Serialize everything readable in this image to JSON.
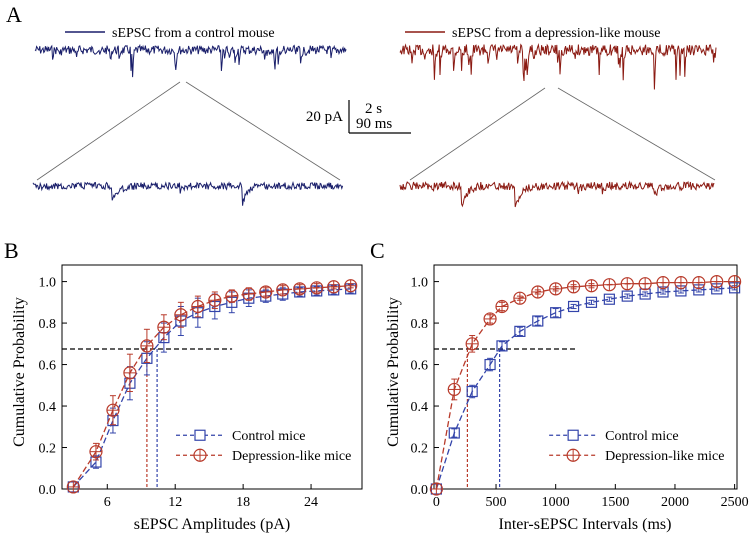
{
  "panel_labels": {
    "a": "A",
    "b": "B",
    "c": "C"
  },
  "colors": {
    "control": "#3344aa",
    "depression": "#b83a2a",
    "control_trace": "#1a1f6b",
    "depression_trace": "#8b1a12",
    "axis": "#000000",
    "threshold": "#000000"
  },
  "panel_a": {
    "legend_control": "sEPSC from a control mouse",
    "legend_depression": "sEPSC from a depression-like mouse",
    "scale_amplitude": "20 pA",
    "scale_time_long": "2 s",
    "scale_time_short": "90 ms"
  },
  "chart_data": [
    {
      "id": "B",
      "type": "line",
      "title": "",
      "xlabel": "sEPSC Amplitudes (pA)",
      "ylabel": "Cumulative Probability",
      "xlim": [
        2,
        28.5
      ],
      "ylim": [
        0,
        1.08
      ],
      "xticks": [
        6,
        12,
        18,
        24
      ],
      "yticks": [
        0.0,
        0.2,
        0.4,
        0.6,
        0.8,
        1.0
      ],
      "legend_position": "bottom-right",
      "threshold_y": 0.675,
      "series": [
        {
          "name": "Control mice",
          "marker": "square",
          "x": [
            3,
            5,
            6.5,
            8,
            9.5,
            11,
            12.5,
            14,
            15.5,
            17,
            18.5,
            20,
            21.5,
            23,
            24.5,
            26,
            27.5
          ],
          "y": [
            0.01,
            0.13,
            0.33,
            0.51,
            0.63,
            0.73,
            0.81,
            0.85,
            0.88,
            0.9,
            0.92,
            0.93,
            0.94,
            0.95,
            0.955,
            0.96,
            0.965
          ],
          "err": [
            0.0,
            0.03,
            0.06,
            0.08,
            0.08,
            0.07,
            0.07,
            0.07,
            0.06,
            0.05,
            0.04,
            0.03,
            0.03,
            0.02,
            0.02,
            0.02,
            0.02
          ],
          "threshold_x": 10.4
        },
        {
          "name": "Depression-like mice",
          "marker": "circle",
          "x": [
            3,
            5,
            6.5,
            8,
            9.5,
            11,
            12.5,
            14,
            15.5,
            17,
            18.5,
            20,
            21.5,
            23,
            24.5,
            26,
            27.5
          ],
          "y": [
            0.01,
            0.18,
            0.38,
            0.56,
            0.69,
            0.78,
            0.84,
            0.88,
            0.91,
            0.93,
            0.94,
            0.95,
            0.96,
            0.965,
            0.97,
            0.975,
            0.98
          ],
          "err": [
            0.0,
            0.04,
            0.07,
            0.09,
            0.08,
            0.06,
            0.06,
            0.05,
            0.04,
            0.03,
            0.03,
            0.02,
            0.02,
            0.02,
            0.02,
            0.01,
            0.01
          ],
          "threshold_x": 9.5
        }
      ]
    },
    {
      "id": "C",
      "type": "line",
      "title": "",
      "xlabel": "Inter-sEPSC Intervals (ms)",
      "ylabel": "Cumulative Probability",
      "xlim": [
        -20,
        2520
      ],
      "ylim": [
        0,
        1.08
      ],
      "xticks": [
        0,
        500,
        1000,
        1500,
        2000,
        2500
      ],
      "yticks": [
        0.0,
        0.2,
        0.4,
        0.6,
        0.8,
        1.0
      ],
      "legend_position": "bottom-right",
      "threshold_y": 0.675,
      "series": [
        {
          "name": "Control mice",
          "marker": "square",
          "x": [
            0,
            150,
            300,
            450,
            550,
            700,
            850,
            1000,
            1150,
            1300,
            1450,
            1600,
            1750,
            1900,
            2050,
            2200,
            2350,
            2500
          ],
          "y": [
            0.0,
            0.27,
            0.47,
            0.6,
            0.69,
            0.76,
            0.81,
            0.85,
            0.88,
            0.9,
            0.915,
            0.93,
            0.94,
            0.95,
            0.955,
            0.96,
            0.965,
            0.97
          ],
          "err": [
            0.0,
            0.02,
            0.03,
            0.03,
            0.02,
            0.02,
            0.02,
            0.02,
            0.01,
            0.01,
            0.01,
            0.01,
            0.01,
            0.01,
            0.01,
            0.01,
            0.01,
            0.01
          ],
          "threshold_x": 530
        },
        {
          "name": "Depression-like mice",
          "marker": "circle",
          "x": [
            0,
            150,
            300,
            450,
            550,
            700,
            850,
            1000,
            1150,
            1300,
            1450,
            1600,
            1750,
            1900,
            2050,
            2200,
            2350,
            2500
          ],
          "y": [
            0.0,
            0.48,
            0.7,
            0.82,
            0.88,
            0.92,
            0.95,
            0.965,
            0.975,
            0.98,
            0.985,
            0.99,
            0.99,
            0.995,
            0.995,
            0.995,
            1.0,
            1.0
          ],
          "err": [
            0.0,
            0.05,
            0.04,
            0.02,
            0.02,
            0.01,
            0.01,
            0.01,
            0.01,
            0.01,
            0.0,
            0.0,
            0.0,
            0.0,
            0.0,
            0.0,
            0.0,
            0.0
          ],
          "threshold_x": 260
        }
      ]
    }
  ]
}
